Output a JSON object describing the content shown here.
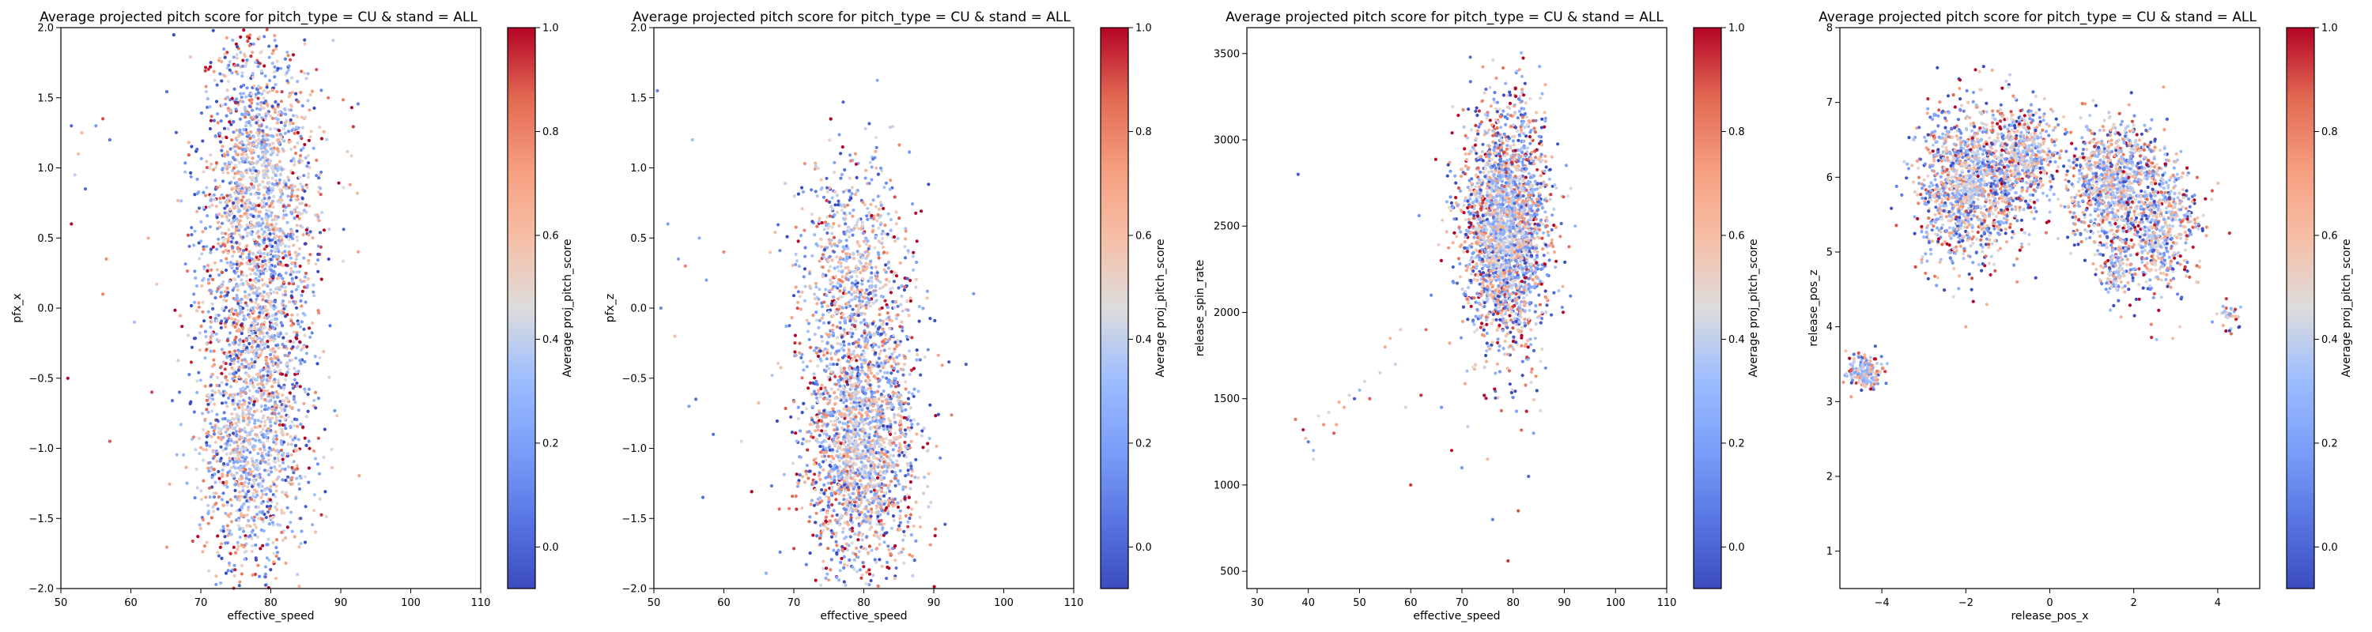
{
  "colors": {
    "colormap": "coolwarm",
    "low": "#3b4cc0",
    "mid": "#dddddd",
    "high": "#b40426"
  },
  "chart_data": [
    {
      "type": "heatmap",
      "title": "Average projected pitch score for pitch_type = CU & stand = ALL",
      "xlabel": "effective_speed",
      "ylabel": "pfx_x",
      "colorbar_label": "Average proj_pitch_score",
      "xlim": [
        50,
        110
      ],
      "ylim": [
        -2.0,
        2.0
      ],
      "xticks": [
        50,
        60,
        70,
        80,
        90,
        100,
        110
      ],
      "yticks": [
        -2.0,
        -1.5,
        -1.0,
        -0.5,
        0.0,
        0.5,
        1.0,
        1.5,
        2.0
      ],
      "ytick_labels": [
        "−2.0",
        "−1.5",
        "−1.0",
        "−0.5",
        "0.0",
        "0.5",
        "1.0",
        "1.5",
        "2.0"
      ],
      "colorbar_range": [
        -0.08,
        1.0
      ],
      "colorbar_ticks": [
        0.0,
        0.2,
        0.4,
        0.6,
        0.8,
        1.0
      ],
      "colorbar_tick_labels": [
        "0.0",
        "0.2",
        "0.4",
        "0.6",
        "0.8",
        "1.0"
      ],
      "clusters": [
        {
          "x": 78.5,
          "y": 0.9,
          "sx": 4.2,
          "sy": 0.55,
          "n": 1500
        },
        {
          "x": 77.5,
          "y": -0.9,
          "sx": 4.0,
          "sy": 0.55,
          "n": 1400
        },
        {
          "x": 78.0,
          "y": 0.0,
          "sx": 4.0,
          "sy": 0.35,
          "n": 350
        }
      ],
      "outliers": [
        [
          51.5,
          1.3
        ],
        [
          52.5,
          1.1
        ],
        [
          53,
          1.25
        ],
        [
          55,
          1.3
        ],
        [
          56,
          1.35
        ],
        [
          57,
          1.2
        ],
        [
          53.5,
          0.85
        ],
        [
          51.5,
          0.6
        ],
        [
          56.5,
          0.35
        ],
        [
          56,
          0.1
        ],
        [
          60.5,
          -0.1
        ],
        [
          51,
          -0.5
        ],
        [
          57,
          -0.95
        ],
        [
          62.5,
          0.5
        ],
        [
          63,
          -0.6
        ],
        [
          52,
          0.95
        ]
      ]
    },
    {
      "type": "heatmap",
      "title": "Average projected pitch score for pitch_type = CU & stand = ALL",
      "xlabel": "effective_speed",
      "ylabel": "pfx_z",
      "colorbar_label": "Average proj_pitch_score",
      "xlim": [
        50,
        110
      ],
      "ylim": [
        -2.0,
        2.0
      ],
      "xticks": [
        50,
        60,
        70,
        80,
        90,
        100,
        110
      ],
      "yticks": [
        -2.0,
        -1.5,
        -1.0,
        -0.5,
        0.0,
        0.5,
        1.0,
        1.5,
        2.0
      ],
      "ytick_labels": [
        "−2.0",
        "−1.5",
        "−1.0",
        "−0.5",
        "0.0",
        "0.5",
        "1.0",
        "1.5",
        "2.0"
      ],
      "colorbar_range": [
        -0.08,
        1.0
      ],
      "colorbar_ticks": [
        0.0,
        0.2,
        0.4,
        0.6,
        0.8,
        1.0
      ],
      "colorbar_tick_labels": [
        "0.0",
        "0.2",
        "0.4",
        "0.6",
        "0.8",
        "1.0"
      ],
      "clusters": [
        {
          "x": 79.5,
          "y": -0.95,
          "sx": 4.2,
          "sy": 0.5,
          "n": 2000
        },
        {
          "x": 78.5,
          "y": 0.3,
          "sx": 4.0,
          "sy": 0.4,
          "n": 700
        }
      ],
      "outliers": [
        [
          50.5,
          1.55
        ],
        [
          52,
          0.6
        ],
        [
          53.5,
          0.35
        ],
        [
          54.5,
          0.3
        ],
        [
          56.5,
          0.5
        ],
        [
          57.5,
          0.2
        ],
        [
          51,
          0.0
        ],
        [
          53,
          -0.2
        ],
        [
          56,
          -0.65
        ],
        [
          55,
          -0.7
        ],
        [
          58.5,
          -0.9
        ],
        [
          57,
          -1.35
        ],
        [
          60,
          0.4
        ],
        [
          62.5,
          -0.95
        ],
        [
          55.5,
          1.2
        ]
      ]
    },
    {
      "type": "heatmap",
      "title": "Average projected pitch score for pitch_type = CU & stand = ALL",
      "xlabel": "effective_speed",
      "ylabel": "release_spin_rate",
      "colorbar_label": "Average proj_pitch_score",
      "xlim": [
        28,
        110
      ],
      "ylim": [
        400,
        3650
      ],
      "xticks": [
        30,
        40,
        50,
        60,
        70,
        80,
        90,
        100,
        110
      ],
      "yticks": [
        500,
        1000,
        1500,
        2000,
        2500,
        3000,
        3500
      ],
      "ytick_labels": [
        "500",
        "1000",
        "1500",
        "2000",
        "2500",
        "3000",
        "3500"
      ],
      "colorbar_range": [
        -0.08,
        1.0
      ],
      "colorbar_ticks": [
        0.0,
        0.2,
        0.4,
        0.6,
        0.8,
        1.0
      ],
      "colorbar_tick_labels": [
        "0.0",
        "0.2",
        "0.4",
        "0.6",
        "0.8",
        "1.0"
      ],
      "clusters": [
        {
          "x": 78.5,
          "y": 2500,
          "sx": 4.3,
          "sy": 340,
          "n": 2500
        }
      ],
      "outliers": [
        [
          38,
          2800
        ],
        [
          37.5,
          1380
        ],
        [
          39,
          1320
        ],
        [
          40,
          1250
        ],
        [
          41,
          1200
        ],
        [
          42,
          1400
        ],
        [
          43,
          1350
        ],
        [
          44,
          1420
        ],
        [
          45,
          1300
        ],
        [
          46,
          1480
        ],
        [
          47,
          1450
        ],
        [
          48,
          1520
        ],
        [
          49,
          1500
        ],
        [
          50,
          1550
        ],
        [
          51,
          1600
        ],
        [
          52,
          1500
        ],
        [
          54,
          1650
        ],
        [
          55,
          1800
        ],
        [
          56,
          1850
        ],
        [
          57,
          1700
        ],
        [
          58,
          1900
        ],
        [
          59,
          1450
        ],
        [
          60,
          1000
        ],
        [
          62,
          1520
        ],
        [
          63,
          1900
        ],
        [
          64,
          2100
        ],
        [
          66,
          1450
        ],
        [
          68,
          1200
        ],
        [
          70,
          1100
        ],
        [
          75,
          1150
        ],
        [
          76,
          800
        ],
        [
          79,
          560
        ],
        [
          81,
          850
        ],
        [
          83,
          1050
        ],
        [
          84,
          1300
        ],
        [
          41,
          1150
        ],
        [
          39.5,
          1270
        ],
        [
          45.5,
          1350
        ]
      ]
    },
    {
      "type": "heatmap",
      "title": "Average projected pitch score for pitch_type = CU & stand = ALL",
      "xlabel": "release_pos_x",
      "ylabel": "release_pos_z",
      "colorbar_label": "Average proj_pitch_score",
      "xlim": [
        -5.0,
        5.0
      ],
      "ylim": [
        0.5,
        8.0
      ],
      "xticks": [
        -4,
        -2,
        0,
        2,
        4
      ],
      "xtick_labels": [
        "−4",
        "−2",
        "0",
        "2",
        "4"
      ],
      "yticks": [
        1,
        2,
        3,
        4,
        5,
        6,
        7,
        8
      ],
      "ytick_labels": [
        "1",
        "2",
        "3",
        "4",
        "5",
        "6",
        "7",
        "8"
      ],
      "colorbar_range": [
        -0.08,
        1.0
      ],
      "colorbar_ticks": [
        0.0,
        0.2,
        0.4,
        0.6,
        0.8,
        1.0
      ],
      "colorbar_tick_labels": [
        "0.0",
        "0.2",
        "0.4",
        "0.6",
        "0.8",
        "1.0"
      ],
      "clusters": [
        {
          "x": -1.9,
          "y": 5.9,
          "sx": 0.6,
          "sy": 0.5,
          "n": 1300
        },
        {
          "x": -0.6,
          "y": 6.3,
          "sx": 0.4,
          "sy": 0.35,
          "n": 500
        },
        {
          "x": 1.5,
          "y": 5.9,
          "sx": 0.6,
          "sy": 0.45,
          "n": 1000
        },
        {
          "x": 2.7,
          "y": 5.3,
          "sx": 0.45,
          "sy": 0.45,
          "n": 500
        },
        {
          "x": 1.6,
          "y": 4.8,
          "sx": 0.15,
          "sy": 0.25,
          "n": 130
        },
        {
          "x": -4.4,
          "y": 3.4,
          "sx": 0.22,
          "sy": 0.12,
          "n": 180
        },
        {
          "x": 4.3,
          "y": 4.15,
          "sx": 0.12,
          "sy": 0.1,
          "n": 35
        }
      ],
      "outliers": [
        [
          -2.0,
          4.0
        ],
        [
          -1.5,
          4.3
        ],
        [
          0.2,
          6.7
        ],
        [
          0.5,
          6.6
        ],
        [
          3.1,
          4.0
        ],
        [
          3.5,
          4.6
        ],
        [
          -3.2,
          4.8
        ],
        [
          -3.0,
          5.2
        ]
      ]
    }
  ]
}
